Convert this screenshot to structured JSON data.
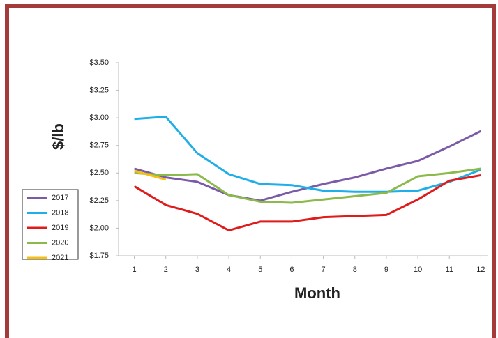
{
  "chart_data": {
    "type": "line",
    "y_label": "$/lb",
    "x_label": "Month",
    "x": [
      1,
      2,
      3,
      4,
      5,
      6,
      7,
      8,
      9,
      10,
      11,
      12
    ],
    "xlim": [
      0.5,
      12.5
    ],
    "xticks": [
      1,
      2,
      3,
      4,
      5,
      6,
      7,
      8,
      9,
      10,
      11,
      12
    ],
    "ylim": [
      1.75,
      3.5
    ],
    "yticks": [
      {
        "value": 1.75,
        "label": "$1.75"
      },
      {
        "value": 2.0,
        "label": "$2.00"
      },
      {
        "value": 2.25,
        "label": "$2.25"
      },
      {
        "value": 2.5,
        "label": "$2.50"
      },
      {
        "value": 2.75,
        "label": "$2.75"
      },
      {
        "value": 3.0,
        "label": "$3.00"
      },
      {
        "value": 3.25,
        "label": "$3.25"
      },
      {
        "value": 3.5,
        "label": "$3.50"
      }
    ],
    "grid": false,
    "legend": "left",
    "series": [
      {
        "name": "2017",
        "color": "#7b5ba6",
        "values": [
          2.54,
          2.46,
          2.42,
          2.3,
          2.25,
          2.33,
          2.4,
          2.46,
          2.54,
          2.61,
          2.74,
          2.88
        ]
      },
      {
        "name": "2018",
        "color": "#1eaee8",
        "values": [
          2.99,
          3.01,
          2.68,
          2.49,
          2.4,
          2.39,
          2.34,
          2.33,
          2.33,
          2.34,
          2.42,
          2.53
        ]
      },
      {
        "name": "2019",
        "color": "#e01b1b",
        "values": [
          2.38,
          2.21,
          2.13,
          1.98,
          2.06,
          2.06,
          2.1,
          2.11,
          2.12,
          2.26,
          2.43,
          2.48
        ]
      },
      {
        "name": "2020",
        "color": "#8cba4a",
        "values": [
          2.5,
          2.48,
          2.49,
          2.3,
          2.24,
          2.23,
          2.26,
          2.29,
          2.32,
          2.47,
          2.5,
          2.54
        ]
      },
      {
        "name": "2021",
        "color": "#f5c010",
        "values": [
          2.52,
          2.44,
          null,
          null,
          null,
          null,
          null,
          null,
          null,
          null,
          null,
          null
        ]
      }
    ]
  }
}
